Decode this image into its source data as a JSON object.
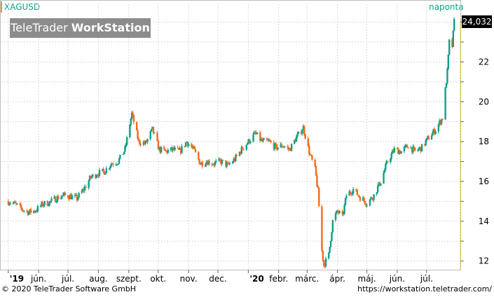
{
  "header": {
    "symbol": "XAGUSD",
    "interval": "naponta",
    "watermark_light": "TeleTrader ",
    "watermark_bold": "WorkStation"
  },
  "footer": {
    "copyright": "© 2020 TeleTrader Software GmbH",
    "url": "https://workstation.teletrader.com/"
  },
  "colors": {
    "up": "#0f9f86",
    "down": "#f26b1d",
    "grid": "#d8d8d8",
    "last_line": "#e8c800"
  },
  "chart_data": {
    "type": "candlestick",
    "title": "",
    "xlabel": "",
    "ylabel": "",
    "ylim": [
      11.6,
      24.9
    ],
    "y_ticks": [
      12,
      14,
      16,
      18,
      20,
      22
    ],
    "y_tick_labels": [
      "12",
      "14",
      "16",
      "18",
      "20",
      "22"
    ],
    "x_ticks": [
      {
        "label": "'19",
        "date": "2019-05-01"
      },
      {
        "label": "jún.",
        "date": "2019-06-01"
      },
      {
        "label": "júl.",
        "date": "2019-07-01"
      },
      {
        "label": "aug.",
        "date": "2019-08-01"
      },
      {
        "label": "szept.",
        "date": "2019-09-01"
      },
      {
        "label": "okt.",
        "date": "2019-10-01"
      },
      {
        "label": "nov.",
        "date": "2019-11-01"
      },
      {
        "label": "dec.",
        "date": "2019-12-01"
      },
      {
        "label": "'20",
        "date": "2020-01-01"
      },
      {
        "label": "febr.",
        "date": "2020-02-01"
      },
      {
        "label": "márc.",
        "date": "2020-03-01"
      },
      {
        "label": "ápr.",
        "date": "2020-04-01"
      },
      {
        "label": "máj.",
        "date": "2020-05-01"
      },
      {
        "label": "jún.",
        "date": "2020-06-01"
      },
      {
        "label": "júl.",
        "date": "2020-07-01"
      }
    ],
    "last_value": "24,032",
    "grid": true,
    "series": [
      {
        "name": "XAGUSD",
        "points": [
          [
            "2019-05-01",
            15.0
          ],
          [
            "2019-05-08",
            14.85
          ],
          [
            "2019-05-15",
            14.6
          ],
          [
            "2019-05-22",
            14.45
          ],
          [
            "2019-05-29",
            14.55
          ],
          [
            "2019-06-05",
            14.85
          ],
          [
            "2019-06-12",
            14.95
          ],
          [
            "2019-06-19",
            15.15
          ],
          [
            "2019-06-26",
            15.3
          ],
          [
            "2019-07-03",
            15.25
          ],
          [
            "2019-07-10",
            15.15
          ],
          [
            "2019-07-17",
            15.6
          ],
          [
            "2019-07-24",
            16.2
          ],
          [
            "2019-07-31",
            16.4
          ],
          [
            "2019-08-07",
            16.5
          ],
          [
            "2019-08-14",
            16.9
          ],
          [
            "2019-08-21",
            17.0
          ],
          [
            "2019-08-28",
            17.6
          ],
          [
            "2019-09-04",
            19.4
          ],
          [
            "2019-09-11",
            18.0
          ],
          [
            "2019-09-18",
            17.9
          ],
          [
            "2019-09-25",
            18.6
          ],
          [
            "2019-10-02",
            17.6
          ],
          [
            "2019-10-09",
            17.5
          ],
          [
            "2019-10-16",
            17.6
          ],
          [
            "2019-10-23",
            17.5
          ],
          [
            "2019-10-30",
            18.0
          ],
          [
            "2019-11-06",
            17.6
          ],
          [
            "2019-11-13",
            16.9
          ],
          [
            "2019-11-20",
            17.0
          ],
          [
            "2019-11-27",
            16.9
          ],
          [
            "2019-12-04",
            17.0
          ],
          [
            "2019-12-11",
            16.8
          ],
          [
            "2019-12-18",
            17.1
          ],
          [
            "2019-12-25",
            17.6
          ],
          [
            "2020-01-01",
            18.0
          ],
          [
            "2020-01-08",
            18.4
          ],
          [
            "2020-01-15",
            18.0
          ],
          [
            "2020-01-22",
            18.0
          ],
          [
            "2020-01-29",
            17.7
          ],
          [
            "2020-02-05",
            17.8
          ],
          [
            "2020-02-12",
            17.6
          ],
          [
            "2020-02-19",
            18.2
          ],
          [
            "2020-02-26",
            18.7
          ],
          [
            "2020-03-04",
            17.3
          ],
          [
            "2020-03-09",
            16.6
          ],
          [
            "2020-03-12",
            15.5
          ],
          [
            "2020-03-16",
            12.5
          ],
          [
            "2020-03-18",
            11.8
          ],
          [
            "2020-03-23",
            12.3
          ],
          [
            "2020-03-27",
            14.0
          ],
          [
            "2020-04-01",
            14.5
          ],
          [
            "2020-04-06",
            14.2
          ],
          [
            "2020-04-10",
            15.3
          ],
          [
            "2020-04-17",
            15.6
          ],
          [
            "2020-04-24",
            15.2
          ],
          [
            "2020-05-01",
            14.9
          ],
          [
            "2020-05-08",
            15.3
          ],
          [
            "2020-05-15",
            16.0
          ],
          [
            "2020-05-22",
            17.0
          ],
          [
            "2020-05-29",
            17.6
          ],
          [
            "2020-06-05",
            17.5
          ],
          [
            "2020-06-12",
            17.8
          ],
          [
            "2020-06-19",
            17.5
          ],
          [
            "2020-06-26",
            17.7
          ],
          [
            "2020-07-03",
            18.2
          ],
          [
            "2020-07-10",
            18.6
          ],
          [
            "2020-07-17",
            19.2
          ],
          [
            "2020-07-22",
            21.5
          ],
          [
            "2020-07-24",
            23.0
          ],
          [
            "2020-07-27",
            22.8
          ],
          [
            "2020-07-29",
            24.03
          ]
        ]
      }
    ]
  }
}
